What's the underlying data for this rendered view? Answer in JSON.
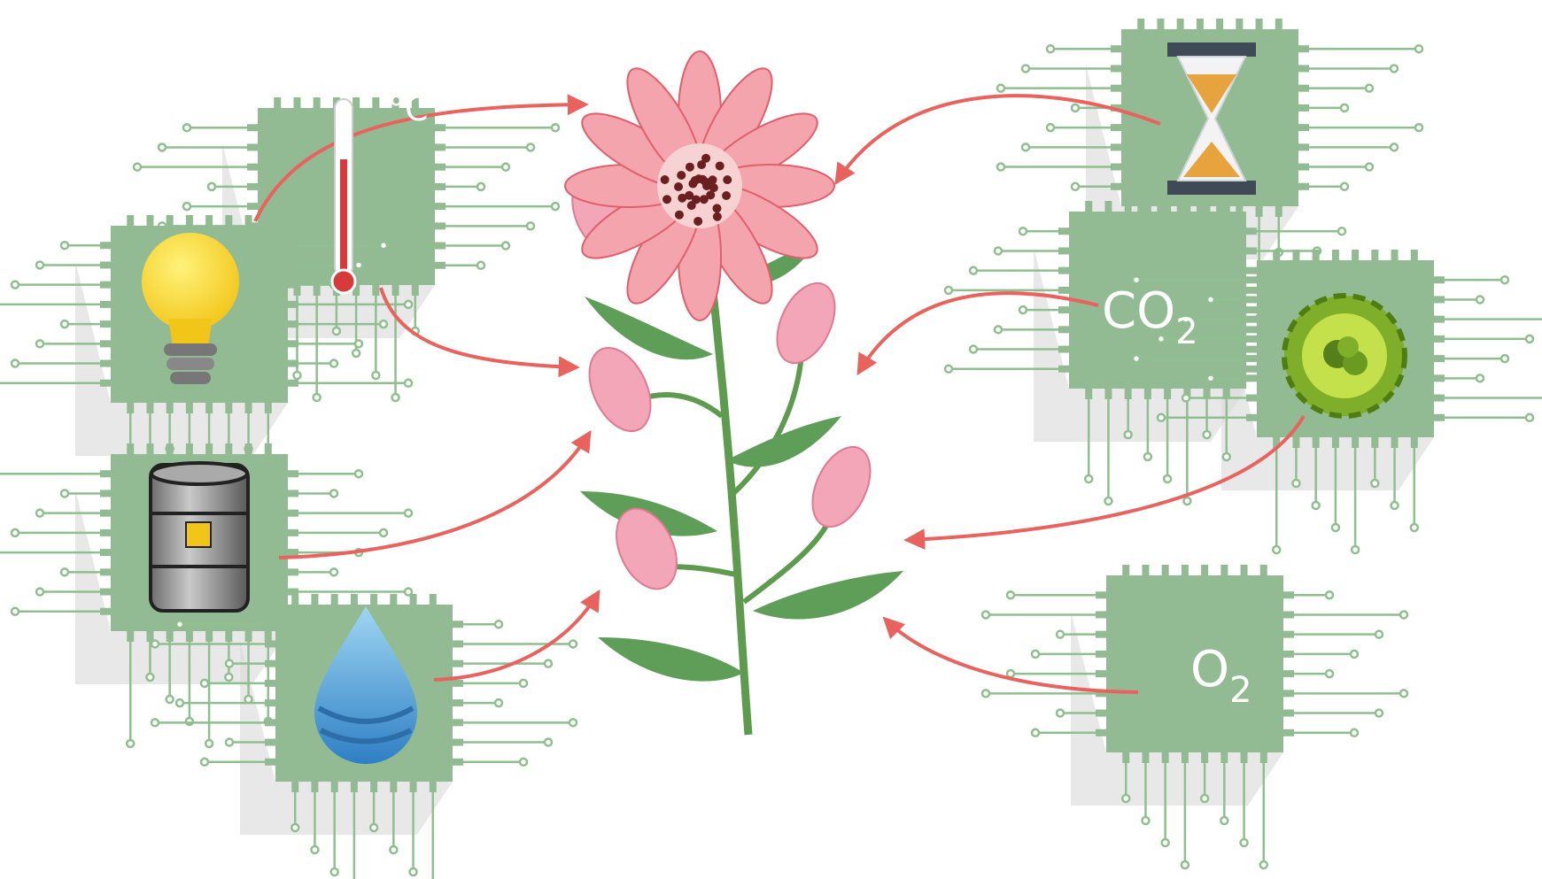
{
  "nodes": [
    {
      "label": "°C"
    },
    {
      "label": "CO",
      "subscript": "2"
    },
    {
      "label": "O",
      "subscript": "2"
    }
  ]
}
